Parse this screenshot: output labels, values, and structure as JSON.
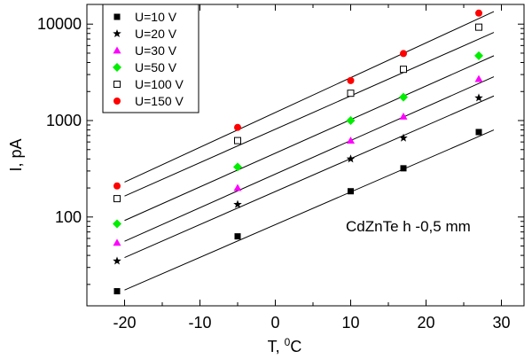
{
  "chart_data": {
    "type": "scatter",
    "xlabel": "T, ",
    "xlabel_superscript": "0",
    "xlabel_unit": "C",
    "ylabel": "I, pA",
    "y_scale": "log",
    "xlim": [
      -25,
      33
    ],
    "ylim": [
      12,
      16000
    ],
    "x_ticks": [
      -20,
      -10,
      0,
      10,
      20,
      30
    ],
    "x_tick_labels": [
      "-20",
      "-10",
      "0",
      "10",
      "20",
      "30"
    ],
    "y_ticks": [
      100,
      1000,
      10000
    ],
    "y_tick_labels": [
      "100",
      "1000",
      "10000"
    ],
    "annotation": "CdZnTe  h -0,5 mm",
    "legend_position": "top-left",
    "grid": false,
    "series": [
      {
        "name": "U=10 V",
        "marker": "square-filled",
        "color": "#000000",
        "x": [
          -21,
          -5,
          10,
          17,
          27
        ],
        "y": [
          17,
          63,
          185,
          320,
          760
        ],
        "fit": {
          "x": [
            -20,
            29
          ],
          "y": [
            17.5,
            800
          ]
        }
      },
      {
        "name": "U=20 V",
        "marker": "star",
        "color": "#000000",
        "x": [
          -21,
          -5,
          10,
          17,
          27
        ],
        "y": [
          35,
          135,
          400,
          660,
          1720
        ],
        "fit": {
          "x": [
            -20,
            29
          ],
          "y": [
            38,
            1800
          ]
        }
      },
      {
        "name": "U=30 V",
        "marker": "triangle",
        "color": "#ff00ff",
        "x": [
          -21,
          -5,
          10,
          17,
          27
        ],
        "y": [
          54,
          200,
          620,
          1100,
          2700
        ],
        "fit": {
          "x": [
            -20,
            29
          ],
          "y": [
            56,
            2850
          ]
        }
      },
      {
        "name": "U=50 V",
        "marker": "diamond",
        "color": "#00ee00",
        "x": [
          -21,
          -5,
          10,
          17,
          27
        ],
        "y": [
          85,
          330,
          1000,
          1750,
          4700
        ],
        "fit": {
          "x": [
            -20,
            29
          ],
          "y": [
            92,
            4700
          ]
        }
      },
      {
        "name": "U=100 V",
        "marker": "square-open",
        "color": "#000000",
        "x": [
          -21,
          -5,
          10,
          17,
          27
        ],
        "y": [
          155,
          620,
          1920,
          3400,
          9300
        ],
        "fit": {
          "x": [
            -20,
            29
          ],
          "y": [
            165,
            8200
          ]
        }
      },
      {
        "name": "U=150 V",
        "marker": "circle",
        "color": "#ff0000",
        "x": [
          -21,
          -5,
          10,
          17,
          27
        ],
        "y": [
          210,
          850,
          2600,
          4950,
          13000
        ],
        "fit": {
          "x": [
            -20,
            29
          ],
          "y": [
            230,
            13500
          ]
        }
      }
    ]
  }
}
